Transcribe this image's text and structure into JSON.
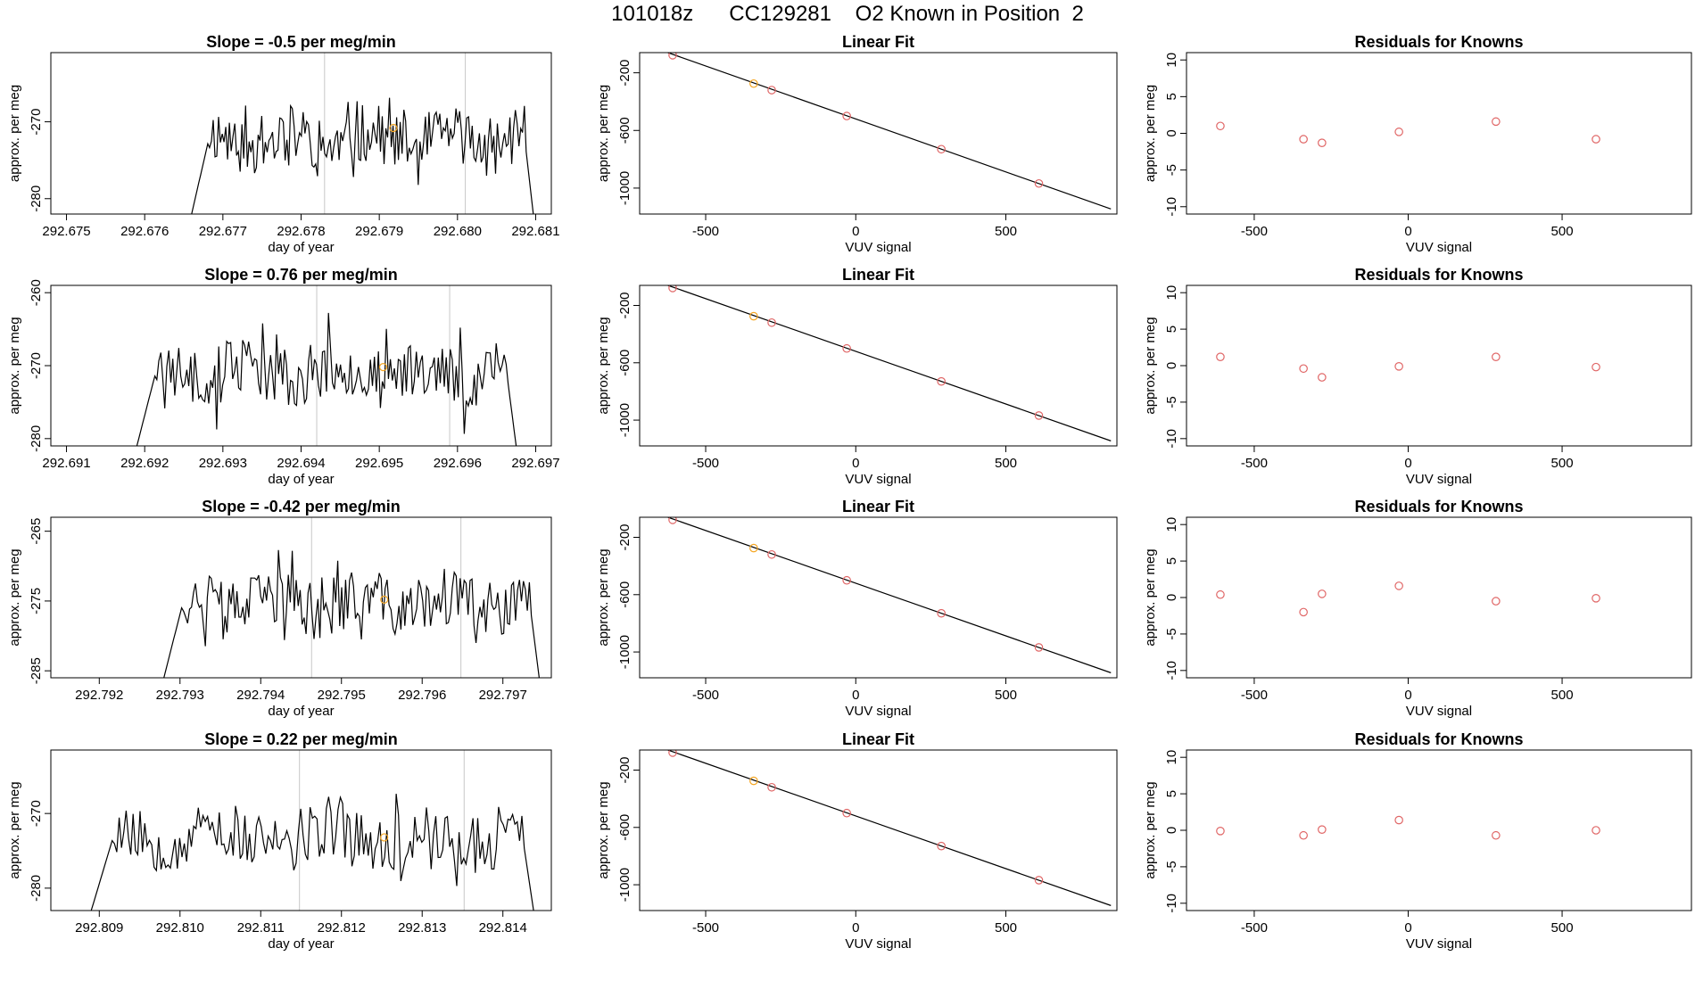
{
  "page": {
    "title": "101018z      CC129281    O2 Known in Position  2"
  },
  "colors": {
    "line": "#000000",
    "point": "#e06666",
    "highlight": "#f5a623",
    "refline": "#c8c8c8",
    "axis": "#000000"
  },
  "chart_data": [
    {
      "type": "line",
      "panel": "time-series",
      "row": 1,
      "title": "Slope =  -0.5  per meg/min",
      "xlabel": "day of year",
      "ylabel": "approx. per meg",
      "xlim": [
        292.6748,
        292.6812
      ],
      "ylim": [
        -282,
        -261
      ],
      "xticks": [
        292.675,
        292.676,
        292.677,
        292.678,
        292.679,
        292.68,
        292.681
      ],
      "xtick_labels": [
        "292.675",
        "292.676",
        "292.677",
        "292.678",
        "292.679",
        "292.680",
        "292.681"
      ],
      "yticks": [
        -270,
        -280
      ],
      "ytick_labels": [
        "-270",
        "-280"
      ],
      "x_start": 292.6766,
      "x_end": 292.68097,
      "start_value": -282,
      "end_value": -282,
      "ref_lines": [
        292.6783,
        292.6801
      ],
      "highlight_point": {
        "x": 292.67918,
        "y": -270.8
      },
      "seed": 11
    },
    {
      "type": "scatter",
      "panel": "linear-fit",
      "row": 1,
      "title": "Linear Fit",
      "xlabel": "VUV signal",
      "ylabel": "approx. per meg",
      "xlim": [
        -720,
        870
      ],
      "ylim": [
        -1180,
        -60
      ],
      "xticks": [
        -500,
        0,
        500
      ],
      "xtick_labels": [
        "-500",
        "0",
        "500"
      ],
      "yticks": [
        -200,
        -600,
        -1000
      ],
      "ytick_labels": [
        "-200",
        "-600",
        "-1000"
      ],
      "fit_line": {
        "x": [
          -660,
          850
        ],
        "y": [
          -35,
          -1145
        ]
      },
      "points": [
        {
          "x": -610,
          "y": -78
        },
        {
          "x": -340,
          "y": -275
        },
        {
          "x": -280,
          "y": -320
        },
        {
          "x": -30,
          "y": -500
        },
        {
          "x": 285,
          "y": -730
        },
        {
          "x": 610,
          "y": -968
        }
      ],
      "highlight_index": 1
    },
    {
      "type": "scatter",
      "panel": "residuals",
      "row": 1,
      "title": "Residuals for Knowns",
      "xlabel": "VUV signal",
      "ylabel": "approx. per meg",
      "xlim": [
        -720,
        920
      ],
      "ylim": [
        -11,
        11
      ],
      "xticks": [
        -500,
        0,
        500
      ],
      "xtick_labels": [
        "-500",
        "0",
        "500"
      ],
      "yticks": [
        10,
        5,
        0,
        -5,
        -10
      ],
      "ytick_labels": [
        "10",
        "5",
        "0",
        "-5",
        "-10"
      ],
      "points": [
        {
          "x": -610,
          "y": 1.0
        },
        {
          "x": -340,
          "y": -0.8
        },
        {
          "x": -280,
          "y": -1.3
        },
        {
          "x": -30,
          "y": 0.2
        },
        {
          "x": 285,
          "y": 1.6
        },
        {
          "x": 610,
          "y": -0.8
        }
      ]
    },
    {
      "type": "line",
      "panel": "time-series",
      "row": 2,
      "title": "Slope =  0.76  per meg/min",
      "xlabel": "day of year",
      "ylabel": "approx. per meg",
      "xlim": [
        292.6908,
        292.6972
      ],
      "ylim": [
        -281,
        -259
      ],
      "xticks": [
        292.691,
        292.692,
        292.693,
        292.694,
        292.695,
        292.696,
        292.697
      ],
      "xtick_labels": [
        "292.691",
        "292.692",
        "292.693",
        "292.694",
        "292.695",
        "292.696",
        "292.697"
      ],
      "yticks": [
        -260,
        -270,
        -280
      ],
      "ytick_labels": [
        "-260",
        "-270",
        "-280"
      ],
      "x_start": 292.6919,
      "x_end": 292.69675,
      "start_value": -281,
      "end_value": -281,
      "ref_lines": [
        292.6942,
        292.6959
      ],
      "highlight_point": {
        "x": 292.69505,
        "y": -270.2
      },
      "seed": 23
    },
    {
      "type": "scatter",
      "panel": "linear-fit",
      "row": 2,
      "title": "Linear Fit",
      "xlabel": "VUV signal",
      "ylabel": "approx. per meg",
      "xlim": [
        -720,
        870
      ],
      "ylim": [
        -1180,
        -60
      ],
      "xticks": [
        -500,
        0,
        500
      ],
      "xtick_labels": [
        "-500",
        "0",
        "500"
      ],
      "yticks": [
        -200,
        -600,
        -1000
      ],
      "ytick_labels": [
        "-200",
        "-600",
        "-1000"
      ],
      "fit_line": {
        "x": [
          -660,
          850
        ],
        "y": [
          -35,
          -1145
        ]
      },
      "points": [
        {
          "x": -610,
          "y": -78
        },
        {
          "x": -340,
          "y": -275
        },
        {
          "x": -280,
          "y": -320
        },
        {
          "x": -30,
          "y": -500
        },
        {
          "x": 285,
          "y": -730
        },
        {
          "x": 610,
          "y": -968
        }
      ],
      "highlight_index": 1
    },
    {
      "type": "scatter",
      "panel": "residuals",
      "row": 2,
      "title": "Residuals for Knowns",
      "xlabel": "VUV signal",
      "ylabel": "approx. per meg",
      "xlim": [
        -720,
        920
      ],
      "ylim": [
        -11,
        11
      ],
      "xticks": [
        -500,
        0,
        500
      ],
      "xtick_labels": [
        "-500",
        "0",
        "500"
      ],
      "yticks": [
        10,
        5,
        0,
        -5,
        -10
      ],
      "ytick_labels": [
        "10",
        "5",
        "0",
        "-5",
        "-10"
      ],
      "points": [
        {
          "x": -610,
          "y": 1.2
        },
        {
          "x": -340,
          "y": -0.4
        },
        {
          "x": -280,
          "y": -1.6
        },
        {
          "x": -30,
          "y": -0.1
        },
        {
          "x": 285,
          "y": 1.2
        },
        {
          "x": 610,
          "y": -0.2
        }
      ]
    },
    {
      "type": "line",
      "panel": "time-series",
      "row": 3,
      "title": "Slope =  -0.42  per meg/min",
      "xlabel": "day of year",
      "ylabel": "approx. per meg",
      "xlim": [
        292.7914,
        292.7976
      ],
      "ylim": [
        -286,
        -263
      ],
      "xticks": [
        292.792,
        292.793,
        292.794,
        292.795,
        292.796,
        292.797
      ],
      "xtick_labels": [
        "292.792",
        "292.793",
        "292.794",
        "292.795",
        "292.796",
        "292.797"
      ],
      "yticks": [
        -265,
        -275,
        -285
      ],
      "ytick_labels": [
        "-265",
        "-275",
        "-285"
      ],
      "x_start": 292.7928,
      "x_end": 292.79745,
      "start_value": -286,
      "end_value": -286,
      "ref_lines": [
        292.79463,
        292.79648
      ],
      "highlight_point": {
        "x": 292.79553,
        "y": -274.8
      },
      "seed": 37
    },
    {
      "type": "scatter",
      "panel": "linear-fit",
      "row": 3,
      "title": "Linear Fit",
      "xlabel": "VUV signal",
      "ylabel": "approx. per meg",
      "xlim": [
        -720,
        870
      ],
      "ylim": [
        -1180,
        -60
      ],
      "xticks": [
        -500,
        0,
        500
      ],
      "xtick_labels": [
        "-500",
        "0",
        "500"
      ],
      "yticks": [
        -200,
        -600,
        -1000
      ],
      "ytick_labels": [
        "-200",
        "-600",
        "-1000"
      ],
      "fit_line": {
        "x": [
          -660,
          850
        ],
        "y": [
          -35,
          -1145
        ]
      },
      "points": [
        {
          "x": -610,
          "y": -78
        },
        {
          "x": -340,
          "y": -275
        },
        {
          "x": -280,
          "y": -320
        },
        {
          "x": -30,
          "y": -500
        },
        {
          "x": 285,
          "y": -730
        },
        {
          "x": 610,
          "y": -968
        }
      ],
      "highlight_index": 1
    },
    {
      "type": "scatter",
      "panel": "residuals",
      "row": 3,
      "title": "Residuals for Knowns",
      "xlabel": "VUV signal",
      "ylabel": "approx. per meg",
      "xlim": [
        -720,
        920
      ],
      "ylim": [
        -11,
        11
      ],
      "xticks": [
        -500,
        0,
        500
      ],
      "xtick_labels": [
        "-500",
        "0",
        "500"
      ],
      "yticks": [
        10,
        5,
        0,
        -5,
        -10
      ],
      "ytick_labels": [
        "10",
        "5",
        "0",
        "-5",
        "-10"
      ],
      "points": [
        {
          "x": -610,
          "y": 0.4
        },
        {
          "x": -340,
          "y": -2.0
        },
        {
          "x": -280,
          "y": 0.5
        },
        {
          "x": -30,
          "y": 1.6
        },
        {
          "x": 285,
          "y": -0.5
        },
        {
          "x": 610,
          "y": -0.1
        }
      ]
    },
    {
      "type": "line",
      "panel": "time-series",
      "row": 4,
      "title": "Slope =  0.22  per meg/min",
      "xlabel": "day of year",
      "ylabel": "approx. per meg",
      "xlim": [
        292.8084,
        292.8146
      ],
      "ylim": [
        -283,
        -261.5
      ],
      "xticks": [
        292.809,
        292.81,
        292.811,
        292.812,
        292.813,
        292.814
      ],
      "xtick_labels": [
        "292.809",
        "292.810",
        "292.811",
        "292.812",
        "292.813",
        "292.814"
      ],
      "yticks": [
        -270,
        -280
      ],
      "ytick_labels": [
        "-270",
        "-280"
      ],
      "x_start": 292.8089,
      "x_end": 292.81438,
      "start_value": -283,
      "end_value": -283,
      "ref_lines": [
        292.81148,
        292.81352
      ],
      "highlight_point": {
        "x": 292.81253,
        "y": -273.2
      },
      "seed": 53
    },
    {
      "type": "scatter",
      "panel": "linear-fit",
      "row": 4,
      "title": "Linear Fit",
      "xlabel": "VUV signal",
      "ylabel": "approx. per meg",
      "xlim": [
        -720,
        870
      ],
      "ylim": [
        -1180,
        -60
      ],
      "xticks": [
        -500,
        0,
        500
      ],
      "xtick_labels": [
        "-500",
        "0",
        "500"
      ],
      "yticks": [
        -200,
        -600,
        -1000
      ],
      "ytick_labels": [
        "-200",
        "-600",
        "-1000"
      ],
      "fit_line": {
        "x": [
          -660,
          850
        ],
        "y": [
          -35,
          -1145
        ]
      },
      "points": [
        {
          "x": -610,
          "y": -78
        },
        {
          "x": -340,
          "y": -275
        },
        {
          "x": -280,
          "y": -320
        },
        {
          "x": -30,
          "y": -500
        },
        {
          "x": 285,
          "y": -730
        },
        {
          "x": 610,
          "y": -968
        }
      ],
      "highlight_index": 1
    },
    {
      "type": "scatter",
      "panel": "residuals",
      "row": 4,
      "title": "Residuals for Knowns",
      "xlabel": "VUV signal",
      "ylabel": "approx. per meg",
      "xlim": [
        -720,
        920
      ],
      "ylim": [
        -11,
        11
      ],
      "xticks": [
        -500,
        0,
        500
      ],
      "xtick_labels": [
        "-500",
        "0",
        "500"
      ],
      "yticks": [
        10,
        5,
        0,
        -5,
        -10
      ],
      "ytick_labels": [
        "10",
        "5",
        "0",
        "-5",
        "-10"
      ],
      "points": [
        {
          "x": -610,
          "y": -0.1
        },
        {
          "x": -340,
          "y": -0.7
        },
        {
          "x": -280,
          "y": 0.1
        },
        {
          "x": -30,
          "y": 1.4
        },
        {
          "x": 285,
          "y": -0.7
        },
        {
          "x": 610,
          "y": 0.0
        }
      ]
    }
  ]
}
